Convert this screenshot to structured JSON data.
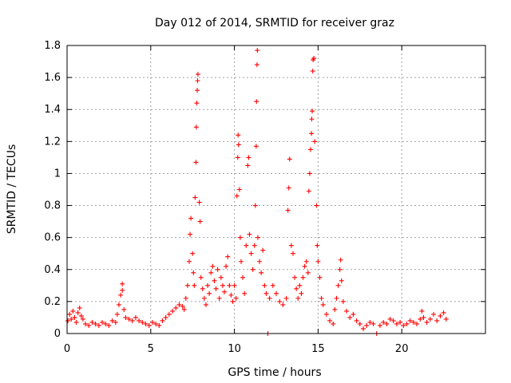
{
  "chart_data": {
    "type": "scatter",
    "title": "Day 012 of 2014, SRMTID for receiver graz",
    "xlabel": "GPS time / hours",
    "ylabel": "SRMTID / TECUs",
    "xlim": [
      0,
      25
    ],
    "ylim": [
      0,
      1.8
    ],
    "xticks": [
      0,
      5,
      10,
      15,
      20
    ],
    "xtick_labels": [
      "0",
      "5",
      "10",
      "15",
      "20"
    ],
    "yticks": [
      0,
      0.2,
      0.4,
      0.6,
      0.8,
      1,
      1.2,
      1.4,
      1.6,
      1.8
    ],
    "ytick_labels": [
      "0",
      "0.2",
      "0.4",
      "0.6",
      "0.8",
      "1",
      "1.2",
      "1.4",
      "1.6",
      "1.8"
    ],
    "grid": true,
    "marker": "+",
    "color": "#ff0000",
    "series": [
      {
        "name": "graz",
        "points": [
          [
            0.05,
            0.08
          ],
          [
            0.15,
            0.12
          ],
          [
            0.25,
            0.09
          ],
          [
            0.35,
            0.14
          ],
          [
            0.45,
            0.1
          ],
          [
            0.55,
            0.07
          ],
          [
            0.65,
            0.13
          ],
          [
            0.75,
            0.16
          ],
          [
            0.85,
            0.11
          ],
          [
            0.95,
            0.09
          ],
          [
            1.1,
            0.06
          ],
          [
            1.3,
            0.05
          ],
          [
            1.5,
            0.07
          ],
          [
            1.7,
            0.06
          ],
          [
            1.9,
            0.05
          ],
          [
            2.1,
            0.07
          ],
          [
            2.3,
            0.06
          ],
          [
            2.5,
            0.05
          ],
          [
            2.7,
            0.08
          ],
          [
            2.9,
            0.07
          ],
          [
            3.0,
            0.12
          ],
          [
            3.1,
            0.18
          ],
          [
            3.2,
            0.24
          ],
          [
            3.3,
            0.31
          ],
          [
            3.3,
            0.27
          ],
          [
            3.4,
            0.15
          ],
          [
            3.5,
            0.1
          ],
          [
            3.7,
            0.09
          ],
          [
            3.9,
            0.08
          ],
          [
            4.1,
            0.1
          ],
          [
            4.3,
            0.08
          ],
          [
            4.5,
            0.07
          ],
          [
            4.7,
            0.06
          ],
          [
            4.9,
            0.05
          ],
          [
            5.1,
            0.07
          ],
          [
            5.3,
            0.06
          ],
          [
            5.5,
            0.05
          ],
          [
            5.7,
            0.08
          ],
          [
            5.9,
            0.1
          ],
          [
            6.1,
            0.12
          ],
          [
            6.3,
            0.14
          ],
          [
            6.5,
            0.16
          ],
          [
            6.7,
            0.18
          ],
          [
            6.9,
            0.17
          ],
          [
            7.0,
            0.15
          ],
          [
            7.1,
            0.22
          ],
          [
            7.2,
            0.3
          ],
          [
            7.3,
            0.45
          ],
          [
            7.35,
            0.62
          ],
          [
            7.4,
            0.72
          ],
          [
            7.5,
            0.5
          ],
          [
            7.55,
            0.38
          ],
          [
            7.6,
            0.3
          ],
          [
            7.65,
            0.85
          ],
          [
            7.7,
            1.07
          ],
          [
            7.72,
            1.29
          ],
          [
            7.75,
            1.44
          ],
          [
            7.78,
            1.52
          ],
          [
            7.8,
            1.58
          ],
          [
            7.82,
            1.62
          ],
          [
            7.9,
            0.82
          ],
          [
            7.95,
            0.7
          ],
          [
            8.0,
            0.35
          ],
          [
            8.1,
            0.28
          ],
          [
            8.2,
            0.22
          ],
          [
            8.3,
            0.18
          ],
          [
            8.4,
            0.3
          ],
          [
            8.5,
            0.25
          ],
          [
            8.6,
            0.38
          ],
          [
            8.7,
            0.42
          ],
          [
            8.8,
            0.33
          ],
          [
            8.9,
            0.28
          ],
          [
            9.0,
            0.4
          ],
          [
            9.1,
            0.22
          ],
          [
            9.2,
            0.35
          ],
          [
            9.3,
            0.3
          ],
          [
            9.4,
            0.26
          ],
          [
            9.5,
            0.42
          ],
          [
            9.6,
            0.48
          ],
          [
            9.7,
            0.3
          ],
          [
            9.8,
            0.24
          ],
          [
            9.9,
            0.2
          ],
          [
            10.0,
            0.3
          ],
          [
            10.1,
            0.22
          ],
          [
            10.15,
            0.86
          ],
          [
            10.2,
            1.1
          ],
          [
            10.22,
            1.24
          ],
          [
            10.25,
            1.18
          ],
          [
            10.3,
            0.9
          ],
          [
            10.35,
            0.6
          ],
          [
            10.4,
            0.45
          ],
          [
            10.5,
            0.35
          ],
          [
            10.6,
            0.25
          ],
          [
            10.7,
            0.55
          ],
          [
            10.8,
            1.05
          ],
          [
            10.85,
            1.1
          ],
          [
            10.9,
            0.62
          ],
          [
            11.0,
            0.5
          ],
          [
            11.1,
            0.4
          ],
          [
            11.2,
            0.55
          ],
          [
            11.25,
            0.8
          ],
          [
            11.3,
            1.17
          ],
          [
            11.32,
            1.45
          ],
          [
            11.35,
            1.68
          ],
          [
            11.37,
            1.77
          ],
          [
            11.4,
            0.6
          ],
          [
            11.5,
            0.45
          ],
          [
            11.6,
            0.38
          ],
          [
            11.7,
            0.52
          ],
          [
            11.8,
            0.3
          ],
          [
            11.9,
            0.25
          ],
          [
            12.0,
            0.0
          ],
          [
            12.1,
            0.22
          ],
          [
            12.3,
            0.3
          ],
          [
            12.5,
            0.25
          ],
          [
            12.7,
            0.2
          ],
          [
            12.9,
            0.18
          ],
          [
            13.1,
            0.22
          ],
          [
            13.2,
            0.77
          ],
          [
            13.25,
            0.91
          ],
          [
            13.3,
            1.09
          ],
          [
            13.4,
            0.55
          ],
          [
            13.5,
            0.5
          ],
          [
            13.6,
            0.35
          ],
          [
            13.7,
            0.28
          ],
          [
            13.8,
            0.22
          ],
          [
            13.9,
            0.3
          ],
          [
            14.0,
            0.25
          ],
          [
            14.1,
            0.35
          ],
          [
            14.2,
            0.42
          ],
          [
            14.3,
            0.45
          ],
          [
            14.4,
            0.38
          ],
          [
            14.45,
            0.89
          ],
          [
            14.5,
            1.0
          ],
          [
            14.55,
            1.15
          ],
          [
            14.6,
            1.25
          ],
          [
            14.62,
            1.34
          ],
          [
            14.65,
            1.39
          ],
          [
            14.68,
            1.64
          ],
          [
            14.7,
            1.71
          ],
          [
            14.75,
            1.72
          ],
          [
            14.8,
            1.2
          ],
          [
            14.9,
            0.8
          ],
          [
            14.95,
            0.55
          ],
          [
            15.0,
            0.45
          ],
          [
            15.1,
            0.35
          ],
          [
            15.2,
            0.22
          ],
          [
            15.3,
            0.18
          ],
          [
            15.5,
            0.12
          ],
          [
            15.7,
            0.08
          ],
          [
            15.9,
            0.06
          ],
          [
            16.0,
            0.15
          ],
          [
            16.1,
            0.22
          ],
          [
            16.2,
            0.3
          ],
          [
            16.3,
            0.4
          ],
          [
            16.35,
            0.46
          ],
          [
            16.4,
            0.33
          ],
          [
            16.5,
            0.2
          ],
          [
            16.7,
            0.14
          ],
          [
            16.9,
            0.1
          ],
          [
            17.1,
            0.12
          ],
          [
            17.3,
            0.08
          ],
          [
            17.5,
            0.06
          ],
          [
            17.7,
            0.03
          ],
          [
            17.9,
            0.05
          ],
          [
            18.1,
            0.07
          ],
          [
            18.3,
            0.06
          ],
          [
            18.5,
            0.0
          ],
          [
            18.7,
            0.05
          ],
          [
            18.9,
            0.07
          ],
          [
            19.1,
            0.06
          ],
          [
            19.3,
            0.09
          ],
          [
            19.5,
            0.08
          ],
          [
            19.7,
            0.06
          ],
          [
            19.9,
            0.07
          ],
          [
            20.1,
            0.05
          ],
          [
            20.3,
            0.06
          ],
          [
            20.5,
            0.08
          ],
          [
            20.7,
            0.07
          ],
          [
            20.9,
            0.06
          ],
          [
            21.1,
            0.09
          ],
          [
            21.2,
            0.14
          ],
          [
            21.3,
            0.1
          ],
          [
            21.5,
            0.07
          ],
          [
            21.7,
            0.09
          ],
          [
            21.9,
            0.12
          ],
          [
            22.1,
            0.08
          ],
          [
            22.3,
            0.11
          ],
          [
            22.5,
            0.13
          ],
          [
            22.65,
            0.09
          ]
        ]
      }
    ]
  }
}
